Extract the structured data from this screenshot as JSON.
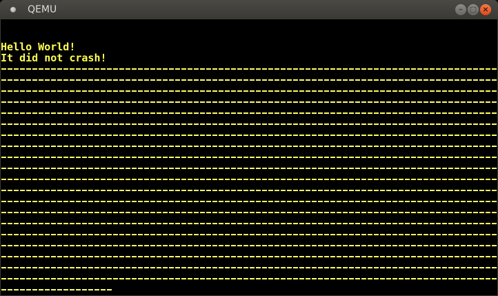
{
  "window": {
    "title": "QEMU",
    "buttons": {
      "minimize": "–",
      "maximize": "□",
      "close": "×"
    }
  },
  "console": {
    "lines": [
      "Hello World!",
      "It did not crash!"
    ],
    "text_color": "#ffff55",
    "dash_rows_full": 20,
    "dash_row_chars": 80,
    "dash_last_row_chars": 18
  }
}
